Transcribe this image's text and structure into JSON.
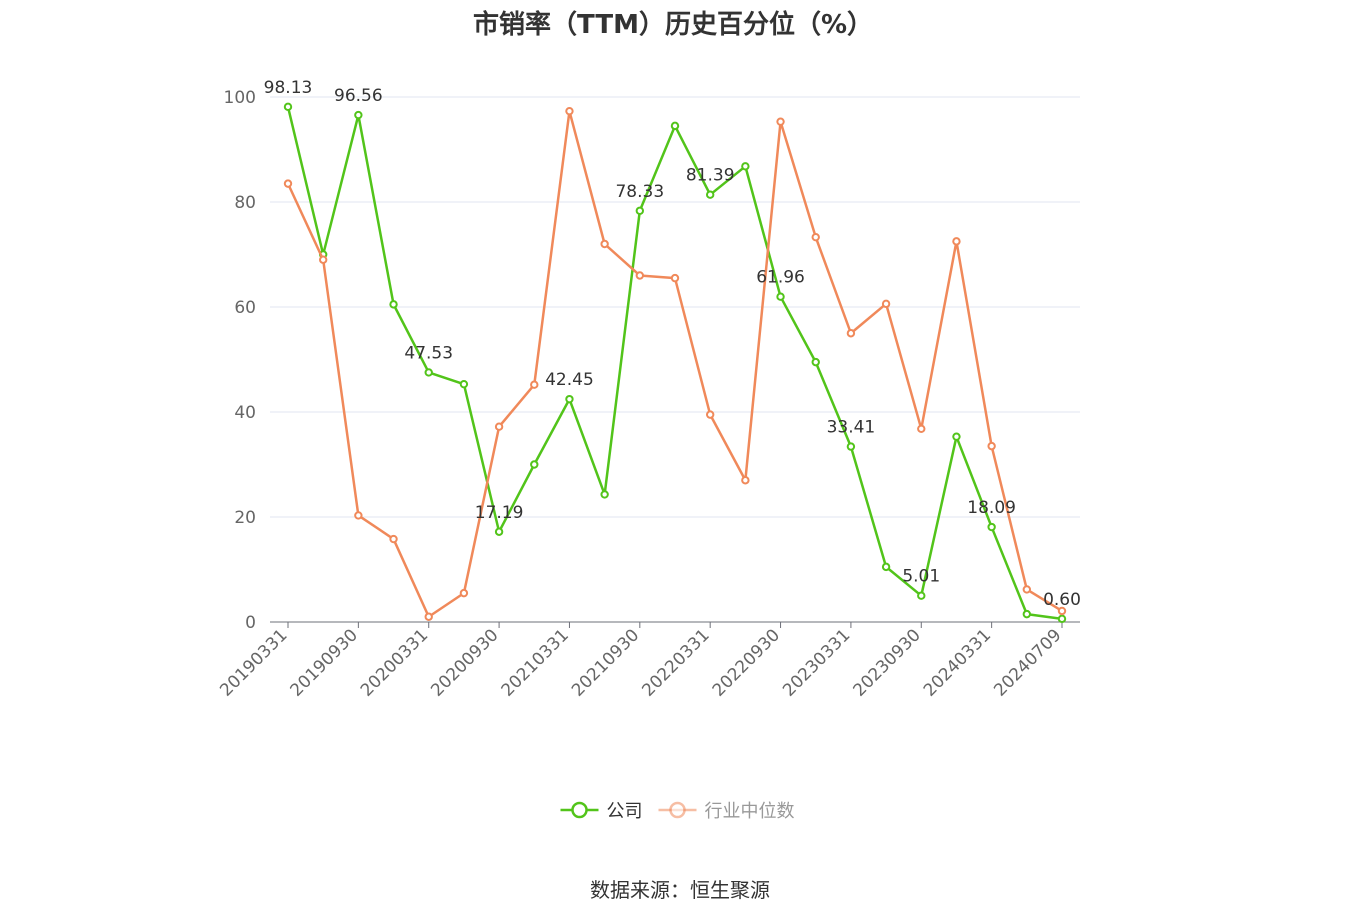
{
  "title": "市销率（TTM）历史百分位（%）",
  "source": "数据来源：恒生聚源",
  "chart_data": {
    "type": "line",
    "ylim": [
      0,
      100
    ],
    "y_ticks": [
      0,
      20,
      40,
      60,
      80,
      100
    ],
    "x": [
      "20190331",
      "20190630",
      "20190930",
      "20191231",
      "20200331",
      "20200630",
      "20200930",
      "20201231",
      "20210331",
      "20210630",
      "20210930",
      "20211231",
      "20220331",
      "20220630",
      "20220930",
      "20221231",
      "20230331",
      "20230630",
      "20230930",
      "20231231",
      "20240331",
      "20240630",
      "20240709"
    ],
    "x_tick_labels": [
      "20190331",
      "20190930",
      "20200331",
      "20200930",
      "20210331",
      "20210930",
      "20220331",
      "20220930",
      "20230331",
      "20230930",
      "20240331",
      "20240709"
    ],
    "grid": true,
    "legend_position": "bottom",
    "series": [
      {
        "name": "公司",
        "color": "#52c41a",
        "values": [
          98.13,
          70,
          96.56,
          60.5,
          47.53,
          45.3,
          17.19,
          30,
          42.45,
          24.3,
          78.33,
          94.5,
          81.39,
          86.8,
          61.96,
          49.5,
          33.41,
          10.5,
          5.01,
          35.3,
          18.09,
          1.5,
          0.6
        ],
        "labels": {
          "0": "98.13",
          "2": "96.56",
          "4": "47.53",
          "6": "17.19",
          "8": "42.45",
          "10": "78.33",
          "12": "81.39",
          "14": "61.96",
          "16": "33.41",
          "18": "5.01",
          "20": "18.09",
          "22": "0.60"
        }
      },
      {
        "name": "行业中位数",
        "color": "#f0895a",
        "values": [
          83.5,
          69,
          20.3,
          15.8,
          1,
          5.5,
          37.2,
          45.2,
          97.3,
          72,
          66,
          65.5,
          39.5,
          27,
          95.3,
          73.3,
          55,
          60.6,
          36.8,
          72.5,
          33.5,
          6.2,
          2.1
        ]
      }
    ]
  }
}
